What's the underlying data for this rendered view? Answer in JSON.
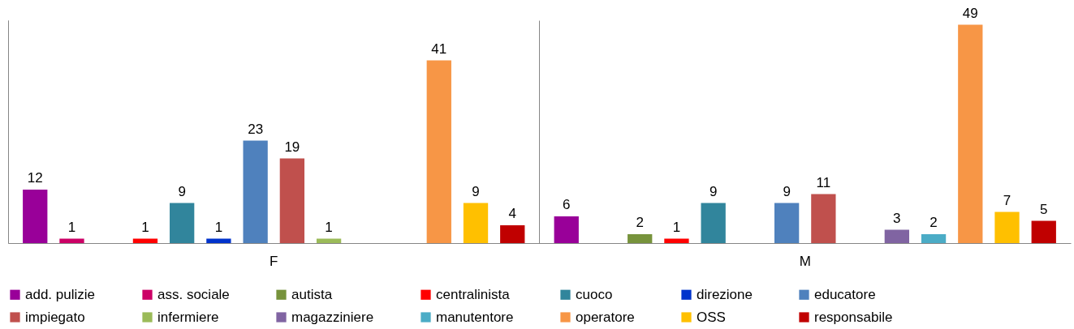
{
  "chart_data": {
    "type": "bar",
    "categories": [
      "F",
      "M"
    ],
    "series": [
      {
        "name": "add. pulizie",
        "color": "#990099",
        "values": [
          12,
          6
        ]
      },
      {
        "name": "ass. sociale",
        "color": "#cc0066",
        "values": [
          1,
          null
        ]
      },
      {
        "name": "autista",
        "color": "#77933c",
        "values": [
          null,
          2
        ]
      },
      {
        "name": "centralinista",
        "color": "#ff0000",
        "values": [
          1,
          1
        ]
      },
      {
        "name": "cuoco",
        "color": "#31859c",
        "values": [
          9,
          9
        ]
      },
      {
        "name": "direzione",
        "color": "#0033cc",
        "values": [
          1,
          null
        ]
      },
      {
        "name": "educatore",
        "color": "#4f81bd",
        "values": [
          23,
          9
        ]
      },
      {
        "name": "impiegato",
        "color": "#c0504d",
        "values": [
          19,
          11
        ]
      },
      {
        "name": "infermiere",
        "color": "#9bbb59",
        "values": [
          1,
          null
        ]
      },
      {
        "name": "magazziniere",
        "color": "#8064a2",
        "values": [
          null,
          3
        ]
      },
      {
        "name": "manutentore",
        "color": "#4bacc6",
        "values": [
          null,
          2
        ]
      },
      {
        "name": "operatore",
        "color": "#f79646",
        "values": [
          41,
          49
        ]
      },
      {
        "name": "OSS",
        "color": "#ffc000",
        "values": [
          9,
          7
        ]
      },
      {
        "name": "responsabile",
        "color": "#c00000",
        "values": [
          4,
          5
        ]
      }
    ],
    "data_labels": true,
    "grid": "x",
    "legend": "bottom",
    "tick_labels": "x"
  }
}
